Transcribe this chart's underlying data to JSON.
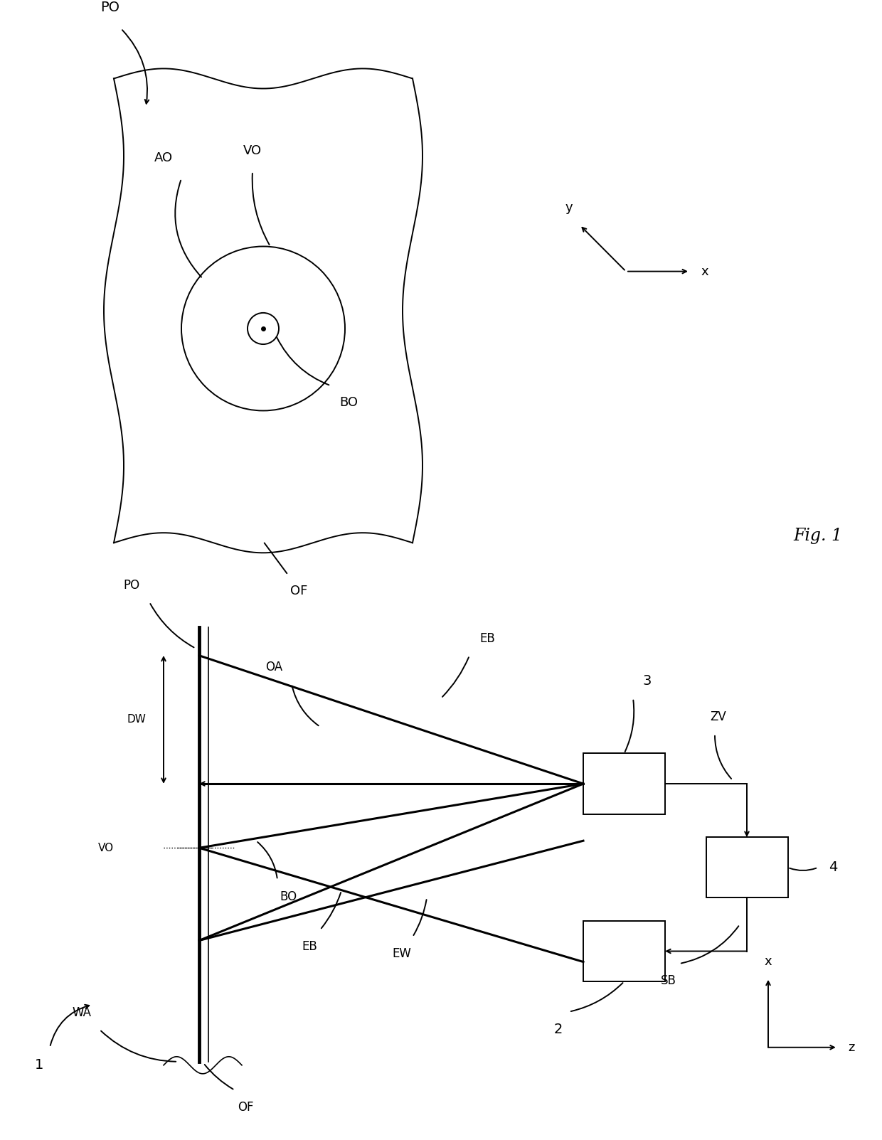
{
  "bg_color": "#ffffff",
  "fig1": {
    "label_PO": "PO",
    "label_AO": "AO",
    "label_VO": "VO",
    "label_BO": "BO",
    "label_OF": "OF",
    "label_x": "x",
    "label_y": "y",
    "fig_label": "Fig. 1"
  },
  "fig2": {
    "label_1": "1",
    "label_PO": "PO",
    "label_DW": "DW",
    "label_OA": "OA",
    "label_EB_top": "EB",
    "label_EB_bottom": "EB",
    "label_EW": "EW",
    "label_VO": "VO",
    "label_BO": "BO",
    "label_WA": "WA",
    "label_OF": "OF",
    "label_2": "2",
    "label_3": "3",
    "label_4": "4",
    "label_ZV": "ZV",
    "label_SB": "SB",
    "label_x": "x",
    "label_z": "z"
  }
}
